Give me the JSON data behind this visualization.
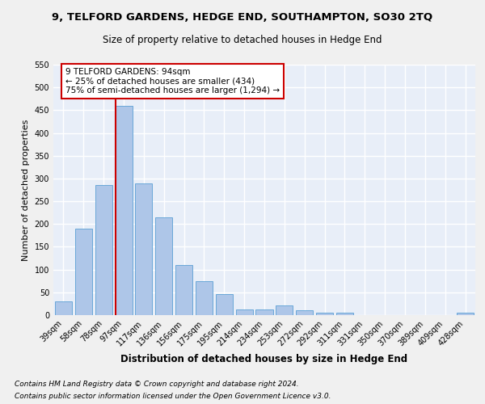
{
  "title": "9, TELFORD GARDENS, HEDGE END, SOUTHAMPTON, SO30 2TQ",
  "subtitle": "Size of property relative to detached houses in Hedge End",
  "xlabel": "Distribution of detached houses by size in Hedge End",
  "ylabel": "Number of detached properties",
  "categories": [
    "39sqm",
    "58sqm",
    "78sqm",
    "97sqm",
    "117sqm",
    "136sqm",
    "156sqm",
    "175sqm",
    "195sqm",
    "214sqm",
    "234sqm",
    "253sqm",
    "272sqm",
    "292sqm",
    "311sqm",
    "331sqm",
    "350sqm",
    "370sqm",
    "389sqm",
    "409sqm",
    "428sqm"
  ],
  "values": [
    30,
    190,
    285,
    460,
    290,
    215,
    110,
    75,
    47,
    13,
    13,
    22,
    10,
    5,
    5,
    0,
    0,
    0,
    0,
    0,
    6
  ],
  "bar_color": "#aec6e8",
  "bar_edge_color": "#5a9fd4",
  "ref_line_color": "#cc0000",
  "annotation_text": "9 TELFORD GARDENS: 94sqm\n← 25% of detached houses are smaller (434)\n75% of semi-detached houses are larger (1,294) →",
  "annotation_box_color": "#ffffff",
  "annotation_box_edge": "#cc0000",
  "ylim": [
    0,
    550
  ],
  "yticks": [
    0,
    50,
    100,
    150,
    200,
    250,
    300,
    350,
    400,
    450,
    500,
    550
  ],
  "footer1": "Contains HM Land Registry data © Crown copyright and database right 2024.",
  "footer2": "Contains public sector information licensed under the Open Government Licence v3.0.",
  "bg_color": "#e8eef8",
  "grid_color": "#ffffff",
  "title_fontsize": 9.5,
  "subtitle_fontsize": 8.5,
  "xlabel_fontsize": 8.5,
  "ylabel_fontsize": 8,
  "tick_fontsize": 7,
  "annotation_fontsize": 7.5,
  "footer_fontsize": 6.5
}
